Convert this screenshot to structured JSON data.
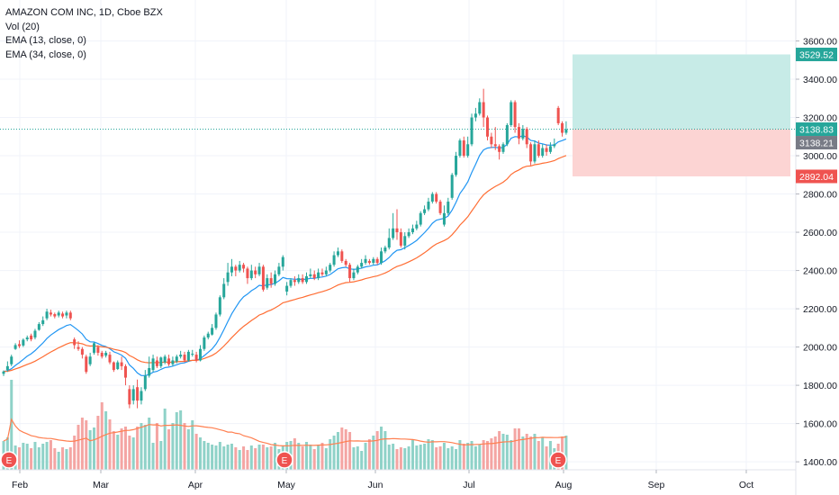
{
  "header": {
    "symbol_line": "AMAZON COM INC, 1D, Cboe BZX",
    "indicators": [
      "Vol (20)",
      "EMA (13, close, 0)",
      "EMA (34, close, 0)"
    ]
  },
  "chart_data": {
    "type": "candlestick",
    "x_ticks": [
      "Feb",
      "Mar",
      "Apr",
      "May",
      "Jun",
      "Jul",
      "Aug",
      "Sep",
      "Oct"
    ],
    "y_ticks": [
      "1400.00",
      "1600.00",
      "1800.00",
      "2000.00",
      "2200.00",
      "2400.00",
      "2600.00",
      "2800.00",
      "3000.00",
      "3200.00",
      "3400.00",
      "3600.00"
    ],
    "ylim": [
      1330,
      3720
    ],
    "price_labels": {
      "take_profit": "3529.52",
      "last": "3138.83",
      "ema": "3138.21",
      "stop": "2892.04"
    },
    "position": {
      "entry": 3138.83,
      "target": 3529.52,
      "stop": 2892.04
    },
    "earnings_marker": "E",
    "colors": {
      "up": "#26a69a",
      "down": "#ef5350",
      "vol_up": "#8fd2c8",
      "vol_down": "#f4a5a3",
      "ema13": "#2196f3",
      "ema34": "#ff6d33",
      "vol_ma": "#ff7f50",
      "profit_zone": "#c7ebe7",
      "loss_zone": "#fcd4d3"
    },
    "candles": [
      [
        1860,
        1872,
        1848,
        1878
      ],
      [
        1880,
        1900,
        1870,
        1925
      ],
      [
        1910,
        1950,
        1900,
        1960
      ],
      [
        1990,
        2010,
        1985,
        2020
      ],
      [
        2015,
        2005,
        1995,
        2035
      ],
      [
        2008,
        2038,
        2000,
        2045
      ],
      [
        2040,
        2050,
        2030,
        2060
      ],
      [
        2060,
        2040,
        2030,
        2070
      ],
      [
        2050,
        2085,
        2040,
        2095
      ],
      [
        2090,
        2120,
        2085,
        2130
      ],
      [
        2120,
        2140,
        2110,
        2160
      ],
      [
        2150,
        2185,
        2140,
        2200
      ],
      [
        2180,
        2170,
        2160,
        2195
      ],
      [
        2172,
        2160,
        2150,
        2180
      ],
      [
        2165,
        2180,
        2155,
        2190
      ],
      [
        2175,
        2160,
        2150,
        2185
      ],
      [
        2165,
        2180,
        2150,
        2190
      ],
      [
        2180,
        2150,
        2140,
        2190
      ],
      [
        2040,
        2010,
        1990,
        2050
      ],
      [
        2000,
        1990,
        1980,
        2030
      ],
      [
        1990,
        1960,
        1940,
        2000
      ],
      [
        1950,
        1870,
        1860,
        1960
      ],
      [
        1910,
        1950,
        1900,
        1970
      ],
      [
        1970,
        2020,
        1960,
        2025
      ],
      [
        2000,
        1970,
        1955,
        2010
      ],
      [
        1970,
        1950,
        1940,
        1980
      ],
      [
        1955,
        1970,
        1945,
        1980
      ],
      [
        1960,
        1920,
        1910,
        1975
      ],
      [
        1920,
        1880,
        1870,
        1925
      ],
      [
        1885,
        1920,
        1880,
        1930
      ],
      [
        1920,
        1900,
        1880,
        1950
      ],
      [
        1900,
        1840,
        1800,
        1910
      ],
      [
        1780,
        1700,
        1680,
        1800
      ],
      [
        1720,
        1780,
        1700,
        1800
      ],
      [
        1790,
        1720,
        1680,
        1830
      ],
      [
        1720,
        1770,
        1700,
        1790
      ],
      [
        1780,
        1850,
        1770,
        1880
      ],
      [
        1850,
        1890,
        1840,
        1950
      ],
      [
        1880,
        1940,
        1870,
        1960
      ],
      [
        1930,
        1900,
        1890,
        1950
      ],
      [
        1900,
        1945,
        1890,
        1950
      ],
      [
        1920,
        1950,
        1910,
        1960
      ],
      [
        1940,
        1910,
        1900,
        1960
      ],
      [
        1910,
        1930,
        1900,
        1950
      ],
      [
        1925,
        1950,
        1915,
        1960
      ],
      [
        1950,
        1960,
        1940,
        1980
      ],
      [
        1960,
        1930,
        1920,
        1975
      ],
      [
        1930,
        1975,
        1925,
        1985
      ],
      [
        1960,
        1965,
        1950,
        1985
      ],
      [
        1960,
        1930,
        1920,
        1975
      ],
      [
        1930,
        1990,
        1925,
        2010
      ],
      [
        1990,
        2050,
        1980,
        2060
      ],
      [
        2050,
        2070,
        2040,
        2080
      ],
      [
        2065,
        2100,
        2060,
        2120
      ],
      [
        2100,
        2170,
        2090,
        2180
      ],
      [
        2170,
        2260,
        2160,
        2270
      ],
      [
        2260,
        2330,
        2250,
        2360
      ],
      [
        2340,
        2390,
        2320,
        2440
      ],
      [
        2390,
        2420,
        2370,
        2460
      ],
      [
        2420,
        2400,
        2370,
        2430
      ],
      [
        2400,
        2430,
        2390,
        2450
      ],
      [
        2430,
        2410,
        2390,
        2440
      ],
      [
        2410,
        2360,
        2330,
        2420
      ],
      [
        2360,
        2400,
        2350,
        2430
      ],
      [
        2400,
        2380,
        2360,
        2420
      ],
      [
        2380,
        2420,
        2370,
        2440
      ],
      [
        2420,
        2300,
        2290,
        2430
      ],
      [
        2310,
        2360,
        2300,
        2380
      ],
      [
        2360,
        2330,
        2310,
        2390
      ],
      [
        2330,
        2380,
        2320,
        2400
      ],
      [
        2380,
        2420,
        2370,
        2440
      ],
      [
        2420,
        2470,
        2400,
        2480
      ],
      [
        2290,
        2320,
        2270,
        2340
      ],
      [
        2320,
        2350,
        2310,
        2360
      ],
      [
        2350,
        2340,
        2320,
        2370
      ],
      [
        2340,
        2360,
        2330,
        2380
      ],
      [
        2360,
        2340,
        2330,
        2380
      ],
      [
        2340,
        2370,
        2330,
        2390
      ],
      [
        2370,
        2380,
        2360,
        2410
      ],
      [
        2380,
        2360,
        2350,
        2400
      ],
      [
        2360,
        2390,
        2350,
        2410
      ],
      [
        2390,
        2380,
        2370,
        2410
      ],
      [
        2380,
        2400,
        2370,
        2420
      ],
      [
        2400,
        2430,
        2390,
        2440
      ],
      [
        2430,
        2480,
        2420,
        2500
      ],
      [
        2480,
        2500,
        2470,
        2520
      ],
      [
        2500,
        2450,
        2440,
        2510
      ],
      [
        2450,
        2430,
        2420,
        2460
      ],
      [
        2430,
        2360,
        2340,
        2440
      ],
      [
        2360,
        2390,
        2350,
        2410
      ],
      [
        2390,
        2420,
        2380,
        2430
      ],
      [
        2420,
        2440,
        2410,
        2460
      ],
      [
        2440,
        2460,
        2430,
        2480
      ],
      [
        2450,
        2440,
        2430,
        2460
      ],
      [
        2440,
        2460,
        2430,
        2470
      ],
      [
        2460,
        2440,
        2430,
        2470
      ],
      [
        2440,
        2500,
        2430,
        2520
      ],
      [
        2500,
        2520,
        2490,
        2530
      ],
      [
        2520,
        2570,
        2510,
        2620
      ],
      [
        2570,
        2620,
        2560,
        2700
      ],
      [
        2620,
        2600,
        2560,
        2720
      ],
      [
        2600,
        2530,
        2520,
        2620
      ],
      [
        2530,
        2580,
        2510,
        2600
      ],
      [
        2580,
        2600,
        2570,
        2620
      ],
      [
        2600,
        2620,
        2590,
        2640
      ],
      [
        2620,
        2640,
        2610,
        2660
      ],
      [
        2640,
        2700,
        2630,
        2710
      ],
      [
        2700,
        2720,
        2690,
        2740
      ],
      [
        2720,
        2760,
        2710,
        2780
      ],
      [
        2760,
        2800,
        2750,
        2810
      ],
      [
        2800,
        2760,
        2750,
        2810
      ],
      [
        2760,
        2700,
        2690,
        2770
      ],
      [
        2640,
        2700,
        2630,
        2740
      ],
      [
        2700,
        2760,
        2690,
        2780
      ],
      [
        2780,
        2900,
        2770,
        2910
      ],
      [
        2900,
        3000,
        2890,
        3020
      ],
      [
        3000,
        3080,
        2990,
        3090
      ],
      [
        3080,
        3000,
        2990,
        3100
      ],
      [
        3000,
        3060,
        2990,
        3100
      ],
      [
        3060,
        3200,
        3050,
        3220
      ],
      [
        3200,
        3220,
        3180,
        3250
      ],
      [
        3220,
        3280,
        3210,
        3300
      ],
      [
        3280,
        3200,
        3150,
        3350
      ],
      [
        3200,
        3100,
        3080,
        3210
      ],
      [
        3100,
        3060,
        3040,
        3120
      ],
      [
        3060,
        3050,
        3030,
        3150
      ],
      [
        3050,
        3020,
        2980,
        3060
      ],
      [
        3020,
        3060,
        3010,
        3070
      ],
      [
        3060,
        3160,
        3050,
        3170
      ],
      [
        3160,
        3280,
        3150,
        3290
      ],
      [
        3280,
        3150,
        3120,
        3290
      ],
      [
        3150,
        3090,
        3060,
        3170
      ],
      [
        3090,
        3140,
        3080,
        3160
      ],
      [
        3140,
        3060,
        3040,
        3150
      ],
      [
        3060,
        2970,
        2950,
        3070
      ],
      [
        2970,
        3060,
        2960,
        3080
      ],
      [
        3060,
        3000,
        2990,
        3080
      ],
      [
        3000,
        3040,
        2990,
        3060
      ],
      [
        3040,
        3020,
        3000,
        3060
      ],
      [
        3020,
        3050,
        3010,
        3070
      ],
      [
        3050,
        3060,
        3040,
        3090
      ],
      [
        3250,
        3170,
        3160,
        3260
      ],
      [
        3170,
        3120,
        3100,
        3180
      ],
      [
        3120,
        3138,
        3110,
        3180
      ]
    ],
    "volume": [
      0.32,
      0.36,
      1.0,
      0.27,
      0.25,
      0.3,
      0.29,
      0.24,
      0.31,
      0.25,
      0.29,
      0.31,
      0.33,
      0.24,
      0.2,
      0.25,
      0.23,
      0.25,
      0.38,
      0.5,
      0.58,
      0.55,
      0.44,
      0.47,
      0.6,
      0.75,
      0.65,
      0.56,
      0.43,
      0.39,
      0.46,
      0.48,
      0.38,
      0.36,
      0.48,
      0.52,
      0.5,
      0.58,
      0.3,
      0.52,
      0.32,
      0.68,
      0.45,
      0.52,
      0.64,
      0.66,
      0.52,
      0.45,
      0.55,
      0.4,
      0.36,
      0.32,
      0.3,
      0.28,
      0.27,
      0.31,
      0.26,
      0.28,
      0.29,
      0.25,
      0.22,
      0.26,
      0.22,
      0.27,
      0.24,
      0.28,
      0.28,
      0.25,
      0.26,
      0.3,
      0.23,
      0.26,
      0.31,
      0.32,
      0.35,
      0.3,
      0.26,
      0.31,
      0.28,
      0.23,
      0.28,
      0.3,
      0.24,
      0.34,
      0.38,
      0.42,
      0.47,
      0.45,
      0.42,
      0.25,
      0.26,
      0.21,
      0.3,
      0.34,
      0.38,
      0.43,
      0.48,
      0.43,
      0.28,
      0.29,
      0.23,
      0.25,
      0.24,
      0.26,
      0.33,
      0.27,
      0.28,
      0.29,
      0.34,
      0.33,
      0.25,
      0.26,
      0.3,
      0.24,
      0.26,
      0.23,
      0.33,
      0.29,
      0.3,
      0.32,
      0.26,
      0.28,
      0.33,
      0.32,
      0.35,
      0.37,
      0.43,
      0.4,
      0.39,
      0.33,
      0.46,
      0.46,
      0.37,
      0.4,
      0.37,
      0.4,
      0.32,
      0.36,
      0.26,
      0.32,
      0.24,
      0.29,
      0.37,
      0.38
    ]
  }
}
